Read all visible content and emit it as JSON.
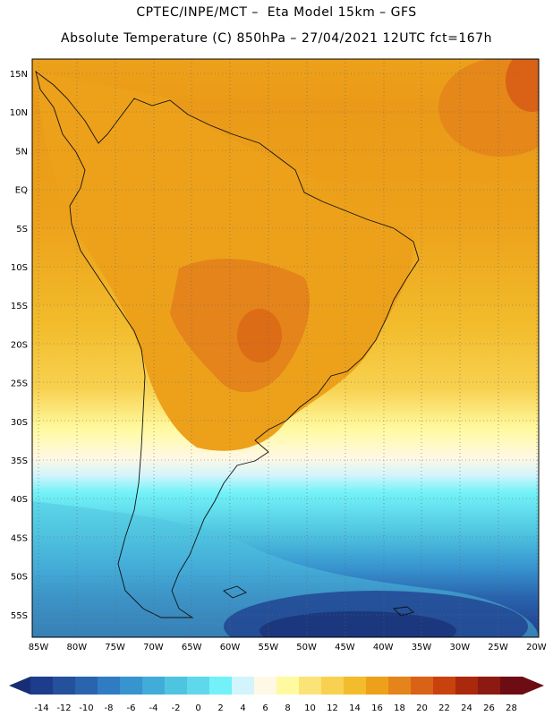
{
  "header": {
    "line1": "CPTEC/INPE/MCT –  Eta Model 15km – GFS",
    "line2": "Absolute Temperature (C) 850hPa – 27/04/2021 12UTC fct=167h"
  },
  "map": {
    "lat_labels": [
      "15N",
      "10N",
      "5N",
      "EQ",
      "5S",
      "10S",
      "15S",
      "20S",
      "25S",
      "30S",
      "35S",
      "40S",
      "45S",
      "50S",
      "55S"
    ],
    "lon_labels": [
      "85W",
      "80W",
      "75W",
      "70W",
      "65W",
      "60W",
      "55W",
      "50W",
      "45W",
      "40W",
      "35W",
      "30W",
      "25W",
      "20W"
    ]
  },
  "colorbar": {
    "labels": [
      "-14",
      "-12",
      "-10",
      "-8",
      "-6",
      "-4",
      "-2",
      "0",
      "2",
      "4",
      "6",
      "8",
      "10",
      "12",
      "14",
      "16",
      "18",
      "20",
      "22",
      "24",
      "26",
      "28"
    ],
    "colors": [
      "#1e3c8c",
      "#24509c",
      "#2a64ae",
      "#2f7cc2",
      "#3794cf",
      "#41acd8",
      "#4fc4e0",
      "#5fd8ec",
      "#72f2f8",
      "#d2f4fc",
      "#fff8e4",
      "#fffaa0",
      "#fbe378",
      "#f8d150",
      "#f2bc2c",
      "#eda11a",
      "#e4841a",
      "#da6216",
      "#c8420e",
      "#aa280c",
      "#8c1a12",
      "#6e0c14"
    ]
  }
}
